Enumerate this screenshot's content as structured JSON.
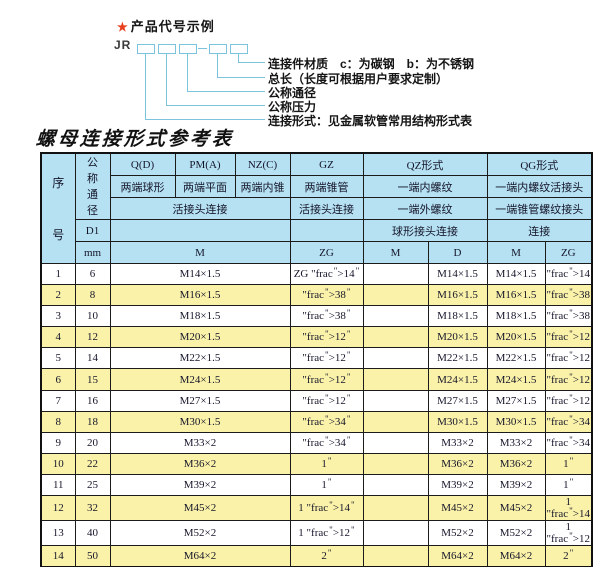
{
  "diagram": {
    "star": "★",
    "title": "产品代号示例",
    "prefix": "JR",
    "labels": [
      "连接件材质　c：为碳钢　b：为不锈钢",
      "总长（长度可根据用户要求定制）",
      "公称通径",
      "公称压力",
      "连接形式：见金属软管常用结构形式表"
    ]
  },
  "table": {
    "title": "螺母连接形式参考表",
    "header": {
      "seq": "序号",
      "nominal": "公称通径",
      "d1": "D1",
      "mm": "mm",
      "q": "Q(D)",
      "pm": "PM(A)",
      "nz": "NZ(C)",
      "gz": "GZ",
      "qz": "QZ形式",
      "qg": "QG形式",
      "q_desc": "两端球形",
      "pm_desc": "两端平面",
      "nz_desc": "两端内锥",
      "gz_desc": "两端锥管",
      "qz_desc1": "一端内螺纹",
      "qg_desc1": "一端内螺纹活接头",
      "union_conn": "活接头连接",
      "gz_conn": "活接头连接",
      "qz_desc2": "一端外螺纹",
      "qg_desc2": "一端锥管螺纹接头",
      "qz_conn": "球形接头连接",
      "qg_conn": "连接",
      "m": "M",
      "zg": "ZG",
      "qz_m": "M",
      "qz_d": "D",
      "qg_m": "M",
      "qg_zg": "ZG"
    },
    "rows": [
      {
        "no": "1",
        "dn": "6",
        "m": "M14×1.5",
        "gz": "ZG 1/4\"",
        "qz_m": "",
        "qz_d": "M14×1.5",
        "qg_m": "M14×1.5",
        "qg_zg": "1/4\""
      },
      {
        "no": "2",
        "dn": "8",
        "m": "M16×1.5",
        "gz": "3/8\"",
        "qz_m": "",
        "qz_d": "M16×1.5",
        "qg_m": "M16×1.5",
        "qg_zg": "3/8\""
      },
      {
        "no": "3",
        "dn": "10",
        "m": "M18×1.5",
        "gz": "3/8\"",
        "qz_m": "",
        "qz_d": "M18×1.5",
        "qg_m": "M18×1.5",
        "qg_zg": "3/8\""
      },
      {
        "no": "4",
        "dn": "12",
        "m": "M20×1.5",
        "gz": "1/2\"",
        "qz_m": "",
        "qz_d": "M20×1.5",
        "qg_m": "M20×1.5",
        "qg_zg": "1/2\""
      },
      {
        "no": "5",
        "dn": "14",
        "m": "M22×1.5",
        "gz": "1/2\"",
        "qz_m": "",
        "qz_d": "M22×1.5",
        "qg_m": "M22×1.5",
        "qg_zg": "1/2\""
      },
      {
        "no": "6",
        "dn": "15",
        "m": "M24×1.5",
        "gz": "1/2\"",
        "qz_m": "",
        "qz_d": "M24×1.5",
        "qg_m": "M24×1.5",
        "qg_zg": "1/2\""
      },
      {
        "no": "7",
        "dn": "16",
        "m": "M27×1.5",
        "gz": "1/2\"",
        "qz_m": "",
        "qz_d": "M27×1.5",
        "qg_m": "M27×1.5",
        "qg_zg": "1/2\""
      },
      {
        "no": "8",
        "dn": "18",
        "m": "M30×1.5",
        "gz": "3/4\"",
        "qz_m": "",
        "qz_d": "M30×1.5",
        "qg_m": "M30×1.5",
        "qg_zg": "3/4\""
      },
      {
        "no": "9",
        "dn": "20",
        "m": "M33×2",
        "gz": "3/4\"",
        "qz_m": "",
        "qz_d": "M33×2",
        "qg_m": "M33×2",
        "qg_zg": "3/4\""
      },
      {
        "no": "10",
        "dn": "22",
        "m": "M36×2",
        "gz": "1\"",
        "qz_m": "",
        "qz_d": "M36×2",
        "qg_m": "M36×2",
        "qg_zg": "1\""
      },
      {
        "no": "11",
        "dn": "25",
        "m": "M39×2",
        "gz": "1\"",
        "qz_m": "",
        "qz_d": "M39×2",
        "qg_m": "M39×2",
        "qg_zg": "1\""
      },
      {
        "no": "12",
        "dn": "32",
        "m": "M45×2",
        "gz": "1 1/4\"",
        "qz_m": "",
        "qz_d": "M45×2",
        "qg_m": "M45×2",
        "qg_zg": "1 1/4\""
      },
      {
        "no": "13",
        "dn": "40",
        "m": "M52×2",
        "gz": "1 1/2\"",
        "qz_m": "",
        "qz_d": "M52×2",
        "qg_m": "M52×2",
        "qg_zg": "1 1/2\""
      },
      {
        "no": "14",
        "dn": "50",
        "m": "M64×2",
        "gz": "2\"",
        "qz_m": "",
        "qz_d": "M64×2",
        "qg_m": "M64×2",
        "qg_zg": "2\""
      }
    ]
  },
  "colors": {
    "header_blue": "#b5e1f2",
    "row_yellow": "#faf2a9",
    "row_white": "#ffffff",
    "line_blue": "#7cc4de",
    "star_red": "#e8401f",
    "border": "#1b1b1b"
  }
}
